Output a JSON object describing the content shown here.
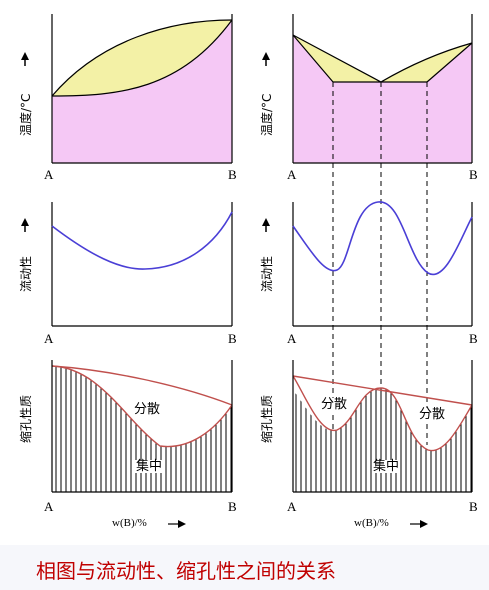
{
  "panels": {
    "top_left": {
      "y_label": "温度/°C",
      "left": "A",
      "right": "B"
    },
    "top_right": {
      "y_label": "温度/°C",
      "left": "A",
      "right": "B"
    },
    "mid_left": {
      "y_label": "流动性",
      "left": "A",
      "right": "B"
    },
    "mid_right": {
      "y_label": "流动性",
      "left": "A",
      "right": "B"
    },
    "bot_left": {
      "y_label": "缩孔性质",
      "left": "A",
      "right": "B",
      "region_upper": "分散",
      "region_lower": "集中",
      "x_label": "w(B)/%"
    },
    "bot_right": {
      "y_label": "缩孔性质",
      "left": "A",
      "right": "B",
      "region_upper_left": "分散",
      "region_upper_right": "分散",
      "region_lower": "集中",
      "x_label": "w(B)/%"
    }
  },
  "caption": "相图与流动性、缩孔性之间的关系",
  "colors": {
    "liquid_region": "#f3f1a6",
    "solid_region": "#f5c8f5",
    "liquidus": "#000000",
    "fluidity_curve": "#4a3fd6",
    "shrinkage_curve": "#c0504d",
    "caption_text": "#c00000"
  }
}
